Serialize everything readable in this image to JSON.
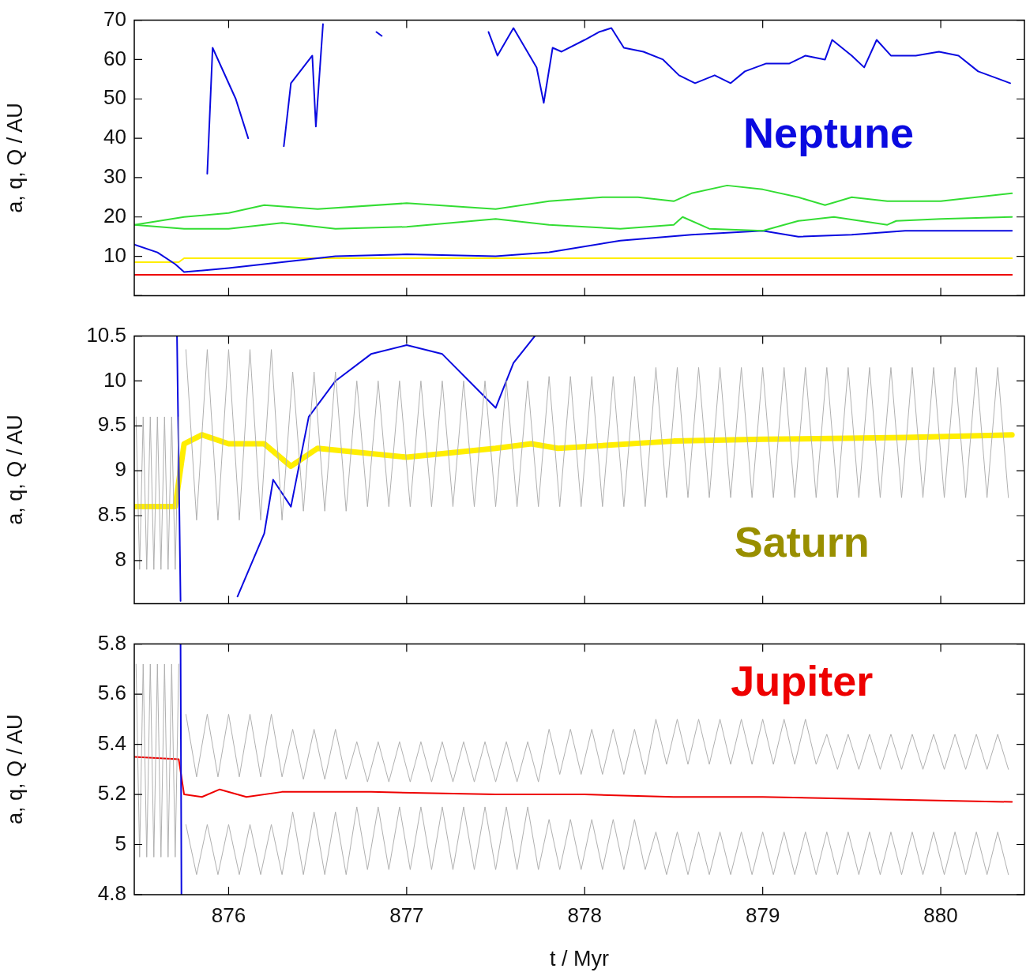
{
  "chart_data": [
    {
      "type": "line",
      "ylabel": "a, q, Q / AU",
      "xlim": [
        875.47,
        880.47
      ],
      "xticks": [
        876,
        877,
        878,
        879,
        880
      ],
      "ylim": [
        0,
        70
      ],
      "yticks": [
        {
          "value": 0,
          "label": null
        },
        10,
        20,
        30,
        40,
        50,
        60,
        70
      ],
      "tick_labels": "y",
      "grid": false,
      "legend": false,
      "series": [
        {
          "name": "Neptune",
          "color": "#0a0ae0",
          "x": [
            875.88,
            875.91,
            876.04,
            876.11,
            876.18,
            876.31,
            876.35,
            876.47,
            876.49,
            876.53,
            876.6,
            876.83,
            876.86,
            877.2,
            877.46,
            877.51,
            877.6,
            877.73,
            877.77,
            877.82,
            877.87,
            878.0,
            878.08,
            878.15,
            878.22,
            878.33,
            878.44,
            878.53,
            878.62,
            878.73,
            878.82,
            878.9,
            879.02,
            879.15,
            879.24,
            879.35,
            879.39,
            879.5,
            879.57,
            879.64,
            879.72,
            879.86,
            879.99,
            880.1,
            880.21,
            880.39
          ],
          "values": [
            31,
            63,
            50,
            40,
            null,
            38,
            54,
            61,
            43,
            69,
            null,
            67,
            66,
            null,
            67,
            61,
            68,
            58,
            49,
            63,
            62,
            65,
            67,
            68,
            63,
            62,
            60,
            56,
            54,
            56,
            54,
            57,
            59,
            59,
            61,
            60,
            65,
            61,
            58,
            65,
            61,
            61,
            62,
            61,
            57,
            54
          ]
        },
        {
          "color": "#33dd33",
          "x": [
            875.47,
            875.75,
            876.0,
            876.2,
            876.5,
            877.0,
            877.5,
            877.8,
            878.1,
            878.3,
            878.5,
            878.6,
            878.8,
            879.0,
            879.2,
            879.35,
            879.5,
            879.7,
            880.0,
            880.4
          ],
          "values": [
            18,
            20,
            21,
            23,
            22,
            23.5,
            22,
            24,
            25,
            25,
            24,
            26,
            28,
            27,
            25,
            23,
            25,
            24,
            24,
            26
          ]
        },
        {
          "color": "#33dd33",
          "x": [
            875.47,
            875.75,
            876.0,
            876.3,
            876.6,
            877.0,
            877.5,
            877.8,
            878.2,
            878.5,
            878.55,
            878.7,
            879.0,
            879.2,
            879.4,
            879.7,
            879.75,
            880.0,
            880.4
          ],
          "values": [
            18,
            17,
            17,
            18.5,
            17,
            17.5,
            19.5,
            18,
            17,
            18,
            20,
            17,
            16.5,
            19,
            20,
            18,
            19,
            19.5,
            20
          ]
        },
        {
          "color": "#0a0ae0",
          "x": [
            875.47,
            875.6,
            875.7,
            875.75,
            876.0,
            876.3,
            876.6,
            877.0,
            877.5,
            877.8,
            878.2,
            878.6,
            879.0,
            879.2,
            879.5,
            879.8,
            880.1,
            880.4
          ],
          "values": [
            13,
            11,
            8,
            6,
            7,
            8.5,
            10,
            10.5,
            10,
            11,
            14,
            15.5,
            16.5,
            15,
            15.5,
            16.5,
            16.5,
            16.5
          ]
        },
        {
          "color": "#ffee00",
          "x": [
            875.47,
            875.72,
            875.75,
            880.4
          ],
          "values": [
            8.5,
            8.5,
            9.5,
            9.5
          ]
        },
        {
          "color": "#ee0000",
          "x": [
            875.47,
            880.4
          ],
          "values": [
            5.3,
            5.3
          ]
        }
      ]
    },
    {
      "type": "line",
      "ylabel": "a, q, Q / AU",
      "xlim": [
        875.47,
        880.47
      ],
      "xticks": [
        876,
        877,
        878,
        879,
        880
      ],
      "ylim": [
        7.52,
        10.5
      ],
      "yticks": [
        8,
        8.5,
        9,
        9.5,
        10,
        10.5
      ],
      "tick_labels": "y",
      "grid": false,
      "legend": false,
      "x": [
        875.76,
        875.82,
        875.88,
        875.94,
        876.0,
        876.06,
        876.12,
        876.18,
        876.24,
        876.3,
        876.36,
        876.42,
        876.48,
        876.54,
        876.6,
        876.66,
        876.72,
        876.78,
        876.84,
        876.9,
        876.96,
        877.02,
        877.08,
        877.14,
        877.2,
        877.26,
        877.32,
        877.38,
        877.44,
        877.5,
        877.56,
        877.62,
        877.68,
        877.74,
        877.8,
        877.86,
        877.92,
        877.98,
        878.04,
        878.1,
        878.16,
        878.22,
        878.28,
        878.34,
        878.4,
        878.46,
        878.52,
        878.58,
        878.64,
        878.7,
        878.76,
        878.82,
        878.88,
        878.94,
        879.0,
        879.06,
        879.12,
        879.18,
        879.24,
        879.3,
        879.36,
        879.42,
        879.48,
        879.54,
        879.6,
        879.66,
        879.72,
        879.78,
        879.84,
        879.9,
        879.96,
        880.02,
        880.08,
        880.14,
        880.2,
        880.26,
        880.32,
        880.38
      ],
      "series": [
        {
          "color": "#b0b0b0",
          "x": [
            875.48,
            875.5,
            875.52,
            875.54,
            875.56,
            875.58,
            875.6,
            875.62,
            875.64,
            875.66,
            875.68,
            875.7,
            875.72
          ],
          "values": [
            9.6,
            7.9,
            9.6,
            7.9,
            9.6,
            7.9,
            9.6,
            7.9,
            9.6,
            7.9,
            9.6,
            7.9,
            9.6
          ]
        },
        {
          "color": "#b0b0b0",
          "values": [
            10.35,
            8.45,
            10.35,
            8.45,
            10.35,
            8.45,
            10.35,
            8.45,
            10.35,
            8.45,
            10.1,
            8.55,
            10.1,
            8.55,
            10.1,
            8.55,
            10.0,
            8.6,
            10.0,
            8.6,
            10.0,
            8.6,
            10.0,
            8.6,
            10.0,
            8.6,
            10.0,
            8.6,
            10.0,
            8.6,
            10.0,
            8.6,
            10.0,
            8.6,
            10.05,
            8.6,
            10.05,
            8.6,
            10.05,
            8.6,
            10.05,
            8.6,
            10.05,
            8.6,
            10.15,
            8.7,
            10.15,
            8.7,
            10.15,
            8.7,
            10.15,
            8.7,
            10.15,
            8.7,
            10.15,
            8.7,
            10.15,
            8.7,
            10.15,
            8.7,
            10.15,
            8.7,
            10.15,
            8.7,
            10.15,
            8.7,
            10.15,
            8.7,
            10.15,
            8.7,
            10.15,
            8.7,
            10.15,
            8.7,
            10.15,
            8.7,
            10.15,
            8.7
          ]
        },
        {
          "color": "#0a0ae0",
          "x": [
            875.71,
            875.73,
            876.0,
            876.05,
            876.2,
            876.25,
            876.35,
            876.45,
            876.6,
            876.8,
            877.0,
            877.2,
            877.4,
            877.5,
            877.6,
            877.72
          ],
          "values": [
            10.5,
            7.55,
            null,
            7.6,
            8.3,
            8.9,
            8.6,
            9.6,
            10.0,
            10.3,
            10.4,
            10.3,
            9.9,
            9.7,
            10.2,
            10.5
          ]
        },
        {
          "name": "Saturn",
          "color": "#ffee00",
          "x": [
            875.47,
            875.7,
            875.75,
            875.85,
            876.0,
            876.2,
            876.35,
            876.5,
            877.0,
            877.5,
            877.7,
            877.85,
            878.5,
            879.0,
            879.8,
            880.4
          ],
          "values": [
            8.6,
            8.6,
            9.3,
            9.4,
            9.3,
            9.3,
            9.05,
            9.25,
            9.15,
            9.25,
            9.3,
            9.25,
            9.33,
            9.35,
            9.37,
            9.4
          ]
        }
      ]
    },
    {
      "type": "line",
      "xlabel": "t / Myr",
      "ylabel": "a, q, Q / AU",
      "xlim": [
        875.47,
        880.47
      ],
      "xticks": [
        876,
        877,
        878,
        879,
        880
      ],
      "ylim": [
        4.8,
        5.8
      ],
      "yticks": [
        4.8,
        5,
        5.2,
        5.4,
        5.6,
        5.8
      ],
      "grid": false,
      "legend": false,
      "x": [
        875.76,
        875.82,
        875.88,
        875.94,
        876.0,
        876.06,
        876.12,
        876.18,
        876.24,
        876.3,
        876.36,
        876.42,
        876.48,
        876.54,
        876.6,
        876.66,
        876.72,
        876.78,
        876.84,
        876.9,
        876.96,
        877.02,
        877.08,
        877.14,
        877.2,
        877.26,
        877.32,
        877.38,
        877.44,
        877.5,
        877.56,
        877.62,
        877.68,
        877.74,
        877.8,
        877.86,
        877.92,
        877.98,
        878.04,
        878.1,
        878.16,
        878.22,
        878.28,
        878.34,
        878.4,
        878.46,
        878.52,
        878.58,
        878.64,
        878.7,
        878.76,
        878.82,
        878.88,
        878.94,
        879.0,
        879.06,
        879.12,
        879.18,
        879.24,
        879.3,
        879.36,
        879.42,
        879.48,
        879.54,
        879.6,
        879.66,
        879.72,
        879.78,
        879.84,
        879.9,
        879.96,
        880.02,
        880.08,
        880.14,
        880.2,
        880.26,
        880.32,
        880.38
      ],
      "series": [
        {
          "color": "#b0b0b0",
          "x": [
            875.48,
            875.5,
            875.52,
            875.54,
            875.56,
            875.58,
            875.6,
            875.62,
            875.64,
            875.66,
            875.68,
            875.7,
            875.72
          ],
          "values": [
            5.72,
            4.95,
            5.72,
            4.95,
            5.72,
            4.95,
            5.72,
            4.95,
            5.72,
            4.95,
            5.72,
            4.95,
            5.72
          ]
        },
        {
          "color": "#b0b0b0",
          "values": [
            5.52,
            5.27,
            5.52,
            5.27,
            5.52,
            5.27,
            5.52,
            5.27,
            5.52,
            5.27,
            5.46,
            5.26,
            5.46,
            5.26,
            5.46,
            5.26,
            5.41,
            5.25,
            5.41,
            5.25,
            5.41,
            5.25,
            5.41,
            5.25,
            5.41,
            5.25,
            5.41,
            5.25,
            5.41,
            5.25,
            5.41,
            5.25,
            5.41,
            5.25,
            5.46,
            5.28,
            5.46,
            5.28,
            5.46,
            5.28,
            5.46,
            5.28,
            5.46,
            5.28,
            5.5,
            5.32,
            5.5,
            5.32,
            5.5,
            5.32,
            5.5,
            5.32,
            5.5,
            5.32,
            5.5,
            5.32,
            5.5,
            5.32,
            5.5,
            5.32,
            5.44,
            5.3,
            5.44,
            5.3,
            5.44,
            5.3,
            5.44,
            5.3,
            5.44,
            5.3,
            5.44,
            5.3,
            5.44,
            5.3,
            5.44,
            5.3,
            5.44,
            5.3
          ]
        },
        {
          "color": "#b0b0b0",
          "values": [
            5.08,
            4.88,
            5.08,
            4.88,
            5.08,
            4.88,
            5.08,
            4.88,
            5.08,
            4.88,
            5.13,
            4.88,
            5.13,
            4.88,
            5.13,
            4.88,
            5.15,
            4.9,
            5.15,
            4.9,
            5.15,
            4.9,
            5.15,
            4.9,
            5.15,
            4.9,
            5.15,
            4.9,
            5.15,
            4.9,
            5.15,
            4.9,
            5.15,
            4.9,
            5.1,
            4.9,
            5.1,
            4.9,
            5.1,
            4.9,
            5.1,
            4.9,
            5.1,
            4.9,
            5.05,
            4.88,
            5.05,
            4.88,
            5.05,
            4.88,
            5.05,
            4.88,
            5.05,
            4.88,
            5.05,
            4.88,
            5.05,
            4.88,
            5.05,
            4.88,
            5.05,
            4.88,
            5.05,
            4.88,
            5.05,
            4.88,
            5.05,
            4.88,
            5.05,
            4.88,
            5.05,
            4.88,
            5.05,
            4.88,
            5.05,
            4.88,
            5.05,
            4.88
          ]
        },
        {
          "color": "#0a0ae0",
          "x": [
            875.73,
            875.735
          ],
          "values": [
            5.8,
            4.8
          ]
        },
        {
          "name": "Jupiter",
          "color": "#ee0000",
          "x": [
            875.47,
            875.72,
            875.75,
            875.85,
            875.95,
            876.1,
            876.3,
            876.8,
            877.5,
            878.0,
            878.5,
            879.0,
            880.4
          ],
          "values": [
            5.35,
            5.34,
            5.2,
            5.19,
            5.22,
            5.19,
            5.21,
            5.21,
            5.2,
            5.2,
            5.19,
            5.19,
            5.17
          ]
        }
      ]
    }
  ]
}
